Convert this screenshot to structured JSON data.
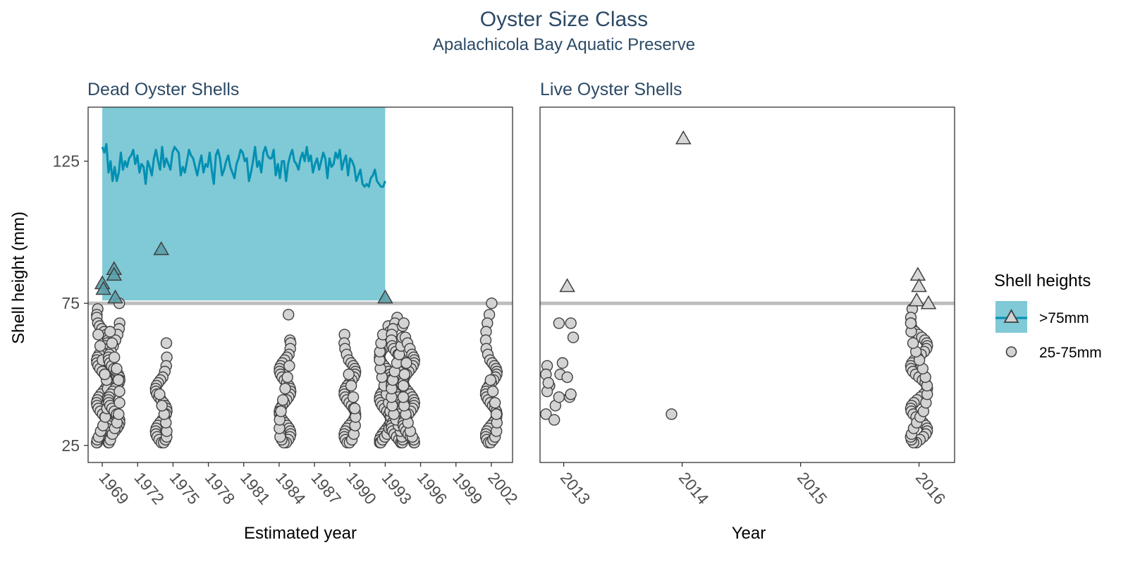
{
  "chart_data": {
    "type": "scatter",
    "title": "Oyster Size Class",
    "subtitle": "Apalachicola Bay Aquatic Preserve",
    "ylabel": "Shell height (mm)",
    "yticks": [
      25,
      75,
      125
    ],
    "reference_line": 75,
    "colors": {
      "band": "#80c9d6",
      "line": "#0090b2",
      "point_fill": "#d3d3d3",
      "point_stroke": "#404040",
      "ref_line": "#bdbdbd"
    },
    "legend": {
      "title": "Shell heights",
      "position": "right",
      "items": [
        {
          "label": ">75mm",
          "shape": "triangle"
        },
        {
          "label": "25-75mm",
          "shape": "circle"
        }
      ]
    },
    "panels": [
      {
        "name": "Dead Oyster Shells",
        "xlabel": "Estimated year",
        "xlim": [
          1967.8,
          2003.8
        ],
        "ylim": [
          19,
          144
        ],
        "xticks": [
          1969,
          1972,
          1975,
          1978,
          1981,
          1984,
          1987,
          1990,
          1993,
          1996,
          1999,
          2002
        ],
        "band": {
          "x": [
            1969,
            1993
          ],
          "y": [
            76,
            144
          ]
        },
        "line_x": [
          1969,
          1993
        ],
        "line_y": [
          130,
          128,
          131,
          121,
          125,
          118,
          123,
          118,
          121,
          128,
          122,
          125,
          123,
          126,
          127,
          129,
          124,
          127,
          121,
          124,
          123,
          117,
          125,
          123,
          120,
          126,
          129,
          125,
          122,
          130,
          123,
          126,
          124,
          122,
          128,
          130,
          129,
          128,
          120,
          123,
          121,
          125,
          129,
          127,
          126,
          123,
          120,
          124,
          127,
          121,
          124,
          123,
          128,
          122,
          117,
          127,
          129,
          126,
          120,
          122,
          125,
          127,
          123,
          121,
          119,
          124,
          126,
          129,
          128,
          125,
          126,
          118,
          121,
          125,
          130,
          123,
          125,
          121,
          128,
          130,
          127,
          126,
          126,
          129,
          120,
          124,
          119,
          125,
          125,
          118,
          124,
          127,
          129,
          125,
          124,
          122,
          126,
          128,
          125,
          130,
          125,
          127,
          121,
          124,
          126,
          122,
          125,
          128,
          126,
          119,
          126,
          123,
          124,
          128,
          126,
          129,
          122,
          125,
          127,
          120,
          126,
          125,
          123,
          118,
          120,
          122,
          117,
          116,
          117,
          116,
          119,
          120,
          122,
          118,
          117,
          116,
          116,
          118
        ],
        "triangles": [
          {
            "x": 1969,
            "y": 82
          },
          {
            "x": 1969.1,
            "y": 80
          },
          {
            "x": 1970,
            "y": 87
          },
          {
            "x": 1970,
            "y": 85
          },
          {
            "x": 1970.1,
            "y": 77
          },
          {
            "x": 1974,
            "y": 94
          },
          {
            "x": 1993,
            "y": 77
          }
        ],
        "point_groups": [
          {
            "x": 1969,
            "y": [
              73,
              71,
              70,
              68,
              67,
              66,
              65,
              64,
              63,
              62,
              61,
              60,
              59,
              58,
              57,
              56,
              55,
              54,
              53,
              52,
              51,
              50,
              49,
              48,
              47,
              46,
              45,
              44,
              43,
              42,
              41,
              40,
              39,
              38,
              37,
              36,
              35,
              34,
              33,
              32,
              31,
              30,
              29,
              28,
              27,
              26,
              26,
              27,
              28,
              30,
              32,
              35,
              38,
              42,
              45,
              48,
              50,
              55,
              60,
              64
            ]
          },
          {
            "x": 1970,
            "y": [
              75,
              68,
              66,
              64,
              62,
              60,
              58,
              57,
              56,
              55,
              54,
              53,
              52,
              51,
              50,
              49,
              48,
              47,
              46,
              45,
              44,
              43,
              42,
              41,
              40,
              39,
              38,
              37,
              36,
              35,
              34,
              33,
              32,
              31,
              30,
              29,
              28,
              27,
              26,
              26,
              27,
              29,
              31,
              33,
              36,
              40,
              44,
              48,
              52,
              56,
              61,
              65
            ]
          },
          {
            "x": 1974,
            "y": [
              61,
              56,
              53,
              51,
              49,
              48,
              47,
              46,
              45,
              44,
              43,
              42,
              41,
              40,
              39,
              38,
              37,
              36,
              35,
              34,
              33,
              32,
              31,
              30,
              29,
              28,
              27,
              26,
              26,
              27,
              28,
              30,
              33,
              36,
              39,
              43
            ]
          },
          {
            "x": 1984.5,
            "y": [
              71,
              62,
              61,
              59,
              57,
              56,
              55,
              54,
              53,
              52,
              51,
              50,
              49,
              48,
              47,
              46,
              45,
              44,
              43,
              42,
              41,
              40,
              39,
              38,
              37,
              36,
              35,
              34,
              33,
              32,
              31,
              30,
              29,
              28,
              27,
              26,
              26,
              27,
              28,
              31,
              34,
              37,
              41,
              45,
              49,
              53
            ]
          },
          {
            "x": 1990,
            "y": [
              64,
              61,
              59,
              57,
              55,
              54,
              53,
              52,
              51,
              50,
              49,
              48,
              47,
              46,
              45,
              44,
              43,
              42,
              41,
              40,
              39,
              38,
              37,
              36,
              35,
              34,
              33,
              32,
              31,
              30,
              29,
              28,
              27,
              26,
              26,
              27,
              29,
              32,
              35,
              38,
              42,
              46,
              50
            ]
          },
          {
            "x": 1993,
            "y": [
              67,
              65,
              64,
              63,
              62,
              61,
              60,
              59,
              58,
              57,
              56,
              55,
              54,
              53,
              52,
              51,
              50,
              49,
              48,
              47,
              46,
              45,
              44,
              43,
              42,
              41,
              40,
              39,
              38,
              37,
              36,
              35,
              34,
              33,
              32,
              31,
              30,
              29,
              28,
              27,
              26,
              26,
              27,
              28,
              29,
              31,
              33,
              35,
              37,
              40,
              43,
              46,
              49,
              52,
              55,
              58,
              61,
              64
            ]
          },
          {
            "x": 1994,
            "y": [
              70,
              68,
              66,
              64,
              62,
              60,
              59,
              58,
              57,
              56,
              55,
              54,
              53,
              52,
              51,
              50,
              49,
              48,
              47,
              46,
              45,
              44,
              43,
              42,
              41,
              40,
              39,
              38,
              37,
              36,
              35,
              34,
              33,
              32,
              31,
              30,
              29,
              28,
              27,
              26,
              26,
              27,
              28,
              30,
              32,
              34,
              36,
              39,
              42,
              45,
              48,
              51,
              54,
              57,
              60,
              63,
              67
            ]
          },
          {
            "x": 1995,
            "y": [
              68,
              63,
              61,
              59,
              57,
              56,
              55,
              54,
              53,
              52,
              51,
              50,
              49,
              48,
              47,
              46,
              45,
              44,
              43,
              42,
              41,
              40,
              39,
              38,
              37,
              36,
              35,
              34,
              33,
              32,
              31,
              30,
              29,
              28,
              27,
              26,
              26,
              27,
              28,
              30,
              33,
              36,
              39,
              42,
              46,
              50,
              54
            ]
          },
          {
            "x": 2002,
            "y": [
              75,
              71,
              68,
              65,
              62,
              59,
              57,
              55,
              54,
              53,
              52,
              51,
              50,
              49,
              48,
              47,
              46,
              45,
              44,
              43,
              42,
              41,
              40,
              39,
              38,
              37,
              36,
              35,
              34,
              33,
              32,
              31,
              30,
              29,
              28,
              27,
              26,
              26,
              27,
              28,
              30,
              33,
              36,
              40,
              44,
              48
            ]
          }
        ]
      },
      {
        "name": "Live Oyster Shells",
        "xlabel": "Year",
        "xlim": [
          2012.8,
          2016.3
        ],
        "ylim": [
          19,
          144
        ],
        "xticks": [
          2013,
          2014,
          2015,
          2016
        ],
        "triangles": [
          {
            "x": 2013.03,
            "y": 81
          },
          {
            "x": 2014.01,
            "y": 133
          },
          {
            "x": 2015.99,
            "y": 85
          },
          {
            "x": 2016.0,
            "y": 81
          },
          {
            "x": 2015.98,
            "y": 76
          },
          {
            "x": 2016.08,
            "y": 75
          }
        ],
        "points": [
          {
            "x": 2012.86,
            "y": 53
          },
          {
            "x": 2012.85,
            "y": 50
          },
          {
            "x": 2012.88,
            "y": 46
          },
          {
            "x": 2012.86,
            "y": 44
          },
          {
            "x": 2012.87,
            "y": 47
          },
          {
            "x": 2012.85,
            "y": 36
          },
          {
            "x": 2012.92,
            "y": 34
          },
          {
            "x": 2012.93,
            "y": 39
          },
          {
            "x": 2012.96,
            "y": 42
          },
          {
            "x": 2012.97,
            "y": 50
          },
          {
            "x": 2012.99,
            "y": 54
          },
          {
            "x": 2013.03,
            "y": 49
          },
          {
            "x": 2013.05,
            "y": 42
          },
          {
            "x": 2013.06,
            "y": 43
          },
          {
            "x": 2012.96,
            "y": 68
          },
          {
            "x": 2013.06,
            "y": 68
          },
          {
            "x": 2013.08,
            "y": 63
          },
          {
            "x": 2013.91,
            "y": 36
          }
        ],
        "point_groups": [
          {
            "x": 2016,
            "y": [
              73,
              70,
              68,
              66,
              65,
              64,
              63,
              62,
              61,
              60,
              59,
              58,
              57,
              56,
              55,
              54,
              53,
              52,
              51,
              50,
              49,
              48,
              47,
              46,
              45,
              44,
              43,
              42,
              41,
              40,
              39,
              38,
              37,
              36,
              35,
              34,
              33,
              32,
              31,
              30,
              29,
              28,
              27,
              26,
              26,
              27,
              28,
              29,
              31,
              33,
              35,
              37,
              40,
              43,
              46,
              49,
              52,
              55,
              58,
              61,
              65,
              68
            ]
          }
        ]
      }
    ]
  }
}
